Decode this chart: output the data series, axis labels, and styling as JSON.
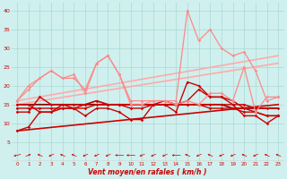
{
  "xlabel": "Vent moyen/en rafales ( km/h )",
  "xlim": [
    -0.5,
    23.5
  ],
  "ylim": [
    0,
    42
  ],
  "yticks": [
    5,
    10,
    15,
    20,
    25,
    30,
    35,
    40
  ],
  "xticks": [
    0,
    1,
    2,
    3,
    4,
    5,
    6,
    7,
    8,
    9,
    10,
    11,
    12,
    13,
    14,
    15,
    16,
    17,
    18,
    19,
    20,
    21,
    22,
    23
  ],
  "bg_color": "#cff0ee",
  "grid_color": "#aad8d4",
  "lines": [
    {
      "x": [
        0,
        1,
        2,
        3,
        4,
        5,
        6,
        7,
        8,
        9,
        10,
        11,
        12,
        13,
        14,
        15,
        16,
        17,
        18,
        19,
        20,
        21,
        22,
        23
      ],
      "y": [
        15,
        15,
        13,
        13,
        15,
        15,
        15,
        16,
        15,
        15,
        15,
        15,
        15,
        15,
        15,
        15,
        15,
        15,
        15,
        15,
        15,
        14,
        14,
        14
      ],
      "color": "#cc0000",
      "lw": 1.0,
      "marker": "D",
      "ms": 1.8
    },
    {
      "x": [
        0,
        1,
        2,
        3,
        4,
        5,
        6,
        7,
        8,
        9,
        10,
        11,
        12,
        13,
        14,
        15,
        16,
        17,
        18,
        19,
        20,
        21,
        22,
        23
      ],
      "y": [
        14,
        14,
        14,
        14,
        14,
        14,
        14,
        15,
        15,
        15,
        14,
        14,
        15,
        15,
        15,
        15,
        15,
        14,
        14,
        14,
        13,
        13,
        12,
        12
      ],
      "color": "#cc0000",
      "lw": 1.0,
      "marker": "D",
      "ms": 1.8
    },
    {
      "x": [
        0,
        1,
        2,
        3,
        4,
        5,
        6,
        7,
        8,
        9,
        10,
        11,
        12,
        13,
        14,
        15,
        16,
        17,
        18,
        19,
        20,
        21,
        22,
        23
      ],
      "y": [
        13,
        13,
        17,
        15,
        15,
        14,
        12,
        14,
        14,
        13,
        11,
        11,
        15,
        15,
        13,
        21,
        20,
        17,
        17,
        15,
        12,
        12,
        10,
        12
      ],
      "color": "#cc0000",
      "lw": 1.0,
      "marker": "D",
      "ms": 1.8
    },
    {
      "x": [
        0,
        1,
        2,
        3,
        4,
        5,
        6,
        7,
        8,
        9,
        10,
        11,
        12,
        13,
        14,
        15,
        16,
        17,
        18,
        19,
        20,
        21,
        22,
        23
      ],
      "y": [
        8,
        9,
        13,
        13,
        14,
        14,
        15,
        16,
        15,
        15,
        15,
        15,
        15,
        16,
        15,
        16,
        19,
        17,
        17,
        16,
        14,
        13,
        12,
        12
      ],
      "color": "#cc0000",
      "lw": 1.0,
      "marker": "D",
      "ms": 1.8
    },
    {
      "x": [
        0,
        1,
        2,
        3,
        4,
        5,
        6,
        7,
        8,
        9,
        10,
        11,
        12,
        13,
        14,
        15,
        16,
        17,
        18,
        19,
        20,
        21,
        22,
        23
      ],
      "y": [
        15,
        15,
        15,
        15,
        15,
        15,
        15,
        15,
        15,
        15,
        15,
        15,
        15,
        15,
        15,
        15,
        15,
        15,
        15,
        14,
        14,
        14,
        14,
        14
      ],
      "color": "#880000",
      "lw": 1.2,
      "marker": null,
      "ms": 0
    },
    {
      "x": [
        0,
        1,
        2,
        3,
        4,
        5,
        6,
        7,
        8,
        9,
        10,
        11,
        12,
        13,
        14,
        15,
        16,
        17,
        18,
        19,
        20,
        21,
        22,
        23
      ],
      "y": [
        16,
        20,
        22,
        24,
        22,
        22,
        19,
        26,
        28,
        23,
        15,
        15,
        16,
        16,
        15,
        16,
        15,
        18,
        18,
        16,
        25,
        13,
        17,
        17
      ],
      "color": "#ff8888",
      "lw": 0.9,
      "marker": "D",
      "ms": 1.8
    },
    {
      "x": [
        0,
        1,
        2,
        3,
        4,
        5,
        6,
        7,
        8,
        9,
        10,
        11,
        12,
        13,
        14,
        15,
        16,
        17,
        18,
        19,
        20,
        21,
        22,
        23
      ],
      "y": [
        16,
        19,
        22,
        24,
        22,
        23,
        18,
        26,
        28,
        23,
        16,
        16,
        16,
        16,
        16,
        40,
        32,
        35,
        30,
        28,
        29,
        24,
        16,
        17
      ],
      "color": "#ff8888",
      "lw": 0.9,
      "marker": "D",
      "ms": 1.8
    },
    {
      "x": [
        0,
        23
      ],
      "y": [
        16,
        28
      ],
      "color": "#ffaaaa",
      "lw": 1.2,
      "marker": null,
      "ms": 0
    },
    {
      "x": [
        0,
        23
      ],
      "y": [
        15,
        26
      ],
      "color": "#ffaaaa",
      "lw": 1.2,
      "marker": null,
      "ms": 0
    },
    {
      "x": [
        0,
        23
      ],
      "y": [
        8,
        15
      ],
      "color": "#cc0000",
      "lw": 1.2,
      "marker": null,
      "ms": 0
    }
  ],
  "arrow_angles": [
    210,
    45,
    135,
    225,
    135,
    135,
    225,
    225,
    225,
    180,
    180,
    225,
    225,
    225,
    180,
    135,
    225,
    135,
    225,
    225,
    135,
    225,
    135,
    135
  ]
}
